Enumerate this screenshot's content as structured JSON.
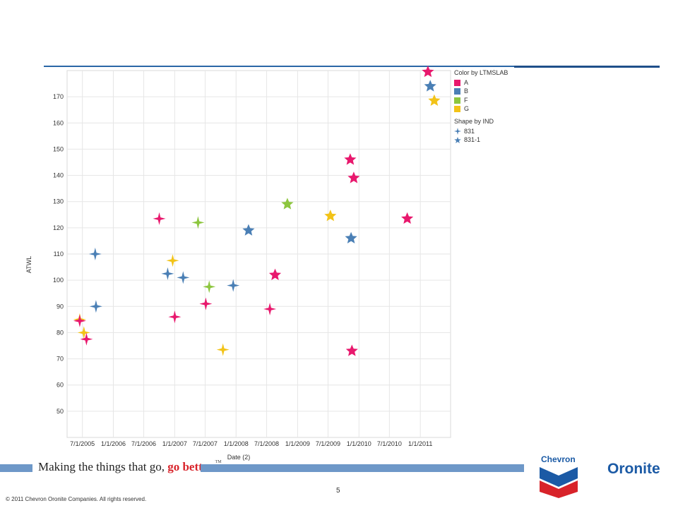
{
  "chart_data": {
    "type": "scatter",
    "xlabel": "Date (2)",
    "ylabel": "ATWL",
    "x_ticks": [
      "7/1/2005",
      "1/1/2006",
      "7/1/2006",
      "1/1/2007",
      "7/1/2007",
      "1/1/2008",
      "7/1/2008",
      "1/1/2009",
      "7/1/2009",
      "1/1/2010",
      "7/1/2010",
      "1/1/2011"
    ],
    "y_ticks": [
      50,
      60,
      70,
      80,
      90,
      100,
      110,
      120,
      130,
      140,
      150,
      160,
      170
    ],
    "xlim": [
      "2005-04-01",
      "2011-06-30"
    ],
    "ylim": [
      40,
      180
    ],
    "grid": true,
    "legend_position": "right",
    "color_legend": {
      "title": "Color by LTMSLAB",
      "entries": [
        {
          "label": "A",
          "color": "#e8186d"
        },
        {
          "label": "B",
          "color": "#4a7fb5"
        },
        {
          "label": "F",
          "color": "#8dc63f"
        },
        {
          "label": "G",
          "color": "#f2c318"
        }
      ]
    },
    "shape_legend": {
      "title": "Shape by IND",
      "entries": [
        {
          "label": "831",
          "shape": "cross-star"
        },
        {
          "label": "831-1",
          "shape": "five-point-star"
        }
      ]
    },
    "points": [
      {
        "date": "2005-06-15",
        "y": 85,
        "lab": "G",
        "ind": "831"
      },
      {
        "date": "2005-06-15",
        "y": 84.5,
        "lab": "A",
        "ind": "831"
      },
      {
        "date": "2005-07-10",
        "y": 80,
        "lab": "G",
        "ind": "831"
      },
      {
        "date": "2005-07-25",
        "y": 77.5,
        "lab": "A",
        "ind": "831"
      },
      {
        "date": "2005-09-15",
        "y": 110,
        "lab": "B",
        "ind": "831"
      },
      {
        "date": "2005-09-20",
        "y": 90,
        "lab": "B",
        "ind": "831"
      },
      {
        "date": "2006-10-01",
        "y": 123.5,
        "lab": "A",
        "ind": "831"
      },
      {
        "date": "2006-11-20",
        "y": 102.5,
        "lab": "B",
        "ind": "831"
      },
      {
        "date": "2006-12-20",
        "y": 107.5,
        "lab": "G",
        "ind": "831"
      },
      {
        "date": "2007-01-01",
        "y": 86,
        "lab": "A",
        "ind": "831"
      },
      {
        "date": "2007-02-20",
        "y": 101,
        "lab": "B",
        "ind": "831"
      },
      {
        "date": "2007-05-20",
        "y": 122,
        "lab": "F",
        "ind": "831"
      },
      {
        "date": "2007-07-05",
        "y": 91,
        "lab": "A",
        "ind": "831"
      },
      {
        "date": "2007-07-25",
        "y": 97.5,
        "lab": "F",
        "ind": "831"
      },
      {
        "date": "2007-10-15",
        "y": 73.5,
        "lab": "G",
        "ind": "831"
      },
      {
        "date": "2007-12-15",
        "y": 98,
        "lab": "B",
        "ind": "831"
      },
      {
        "date": "2008-03-15",
        "y": 119,
        "lab": "B",
        "ind": "831-1"
      },
      {
        "date": "2008-07-20",
        "y": 89,
        "lab": "A",
        "ind": "831"
      },
      {
        "date": "2008-08-20",
        "y": 102,
        "lab": "A",
        "ind": "831-1"
      },
      {
        "date": "2008-11-01",
        "y": 129,
        "lab": "F",
        "ind": "831-1"
      },
      {
        "date": "2009-07-15",
        "y": 124.5,
        "lab": "G",
        "ind": "831-1"
      },
      {
        "date": "2009-11-10",
        "y": 146,
        "lab": "A",
        "ind": "831-1"
      },
      {
        "date": "2009-11-15",
        "y": 116,
        "lab": "B",
        "ind": "831-1"
      },
      {
        "date": "2009-11-20",
        "y": 73,
        "lab": "A",
        "ind": "831-1"
      },
      {
        "date": "2009-12-01",
        "y": 139,
        "lab": "A",
        "ind": "831-1"
      },
      {
        "date": "2010-10-15",
        "y": 123.5,
        "lab": "A",
        "ind": "831-1"
      },
      {
        "date": "2011-02-15",
        "y": 179.5,
        "lab": "A",
        "ind": "831-1"
      },
      {
        "date": "2011-03-01",
        "y": 174,
        "lab": "B",
        "ind": "831-1"
      },
      {
        "date": "2011-03-25",
        "y": 168.5,
        "lab": "G",
        "ind": "831-1"
      }
    ]
  },
  "footer": {
    "tagline_main": "Making the things that go,",
    "tagline_accent": "go better.",
    "tagline_tm": "TM",
    "page_number": "5",
    "copyright": "© 2011 Chevron Oronite Companies. All rights reserved.",
    "logo_chevron": "Chevron",
    "logo_oronite": "Oronite"
  }
}
